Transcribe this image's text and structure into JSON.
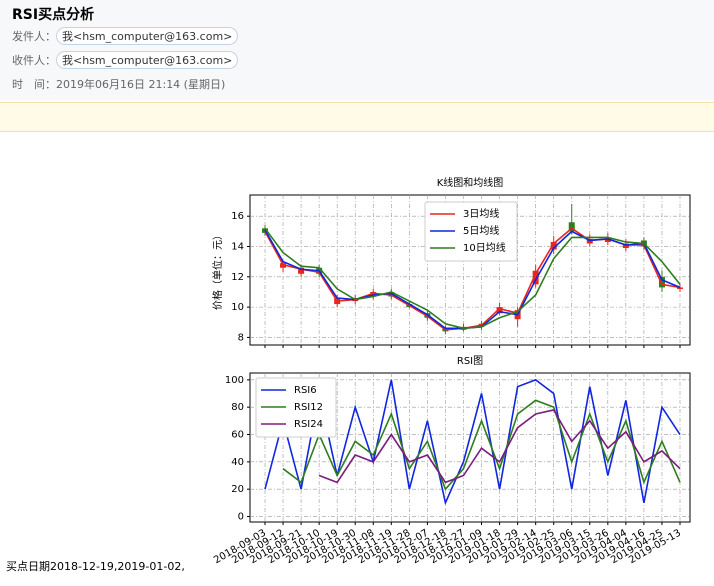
{
  "email": {
    "subject": "RSI买点分析",
    "from_label": "发件人：",
    "from": "我<hsm_computer@163.com>",
    "to_label": "收件人：",
    "to": "我<hsm_computer@163.com>",
    "time_label": "时　间：",
    "time": "2019年06月16日 21:14 (星期日)"
  },
  "body_text": "买点日期2018-12-19,2019-01-02,",
  "chart_data": [
    {
      "type": "candlestick",
      "title": "K线图和均线图",
      "y_label": "价格（单位：元）",
      "ylim": [
        7.5,
        17.4
      ],
      "yticks": [
        8,
        10,
        12,
        14,
        16
      ],
      "grid": true,
      "legend": "upper center",
      "open": [
        15.2,
        12.6,
        12.2,
        12.6,
        10.2,
        10.4,
        10.7,
        11.0,
        10.2,
        9.6,
        8.6,
        8.5,
        8.7,
        9.6,
        9.2,
        11.5,
        13.8,
        15.6,
        14.2,
        14.3,
        13.9,
        14.4,
        12.0,
        11.2
      ],
      "close": [
        14.9,
        12.9,
        12.6,
        12.2,
        10.6,
        10.6,
        11.0,
        10.7,
        10.0,
        9.3,
        8.4,
        8.7,
        8.9,
        10.0,
        9.8,
        12.4,
        14.3,
        15.0,
        14.5,
        14.6,
        14.2,
        14.0,
        11.3,
        11.3
      ],
      "high": [
        15.4,
        13.1,
        12.8,
        12.8,
        10.8,
        10.8,
        11.2,
        11.2,
        10.4,
        9.8,
        8.8,
        8.9,
        9.1,
        10.3,
        10.0,
        12.8,
        14.7,
        16.8,
        14.8,
        14.9,
        14.5,
        14.6,
        12.4,
        11.5
      ],
      "low": [
        14.7,
        12.3,
        12.0,
        12.0,
        10.0,
        10.2,
        10.5,
        10.5,
        9.9,
        9.1,
        8.2,
        8.4,
        8.5,
        9.5,
        8.7,
        11.3,
        13.5,
        14.8,
        14.0,
        14.1,
        13.7,
        13.8,
        11.0,
        11.0
      ],
      "series": [
        {
          "name": "3日均线",
          "color": "#e8261c",
          "values": [
            15.0,
            12.8,
            12.5,
            12.3,
            10.4,
            10.5,
            10.9,
            10.8,
            10.1,
            9.4,
            8.5,
            8.6,
            8.8,
            9.9,
            9.6,
            12.2,
            14.2,
            15.2,
            14.4,
            14.5,
            14.1,
            14.1,
            11.5,
            11.3
          ]
        },
        {
          "name": "5日均线",
          "color": "#1027e0",
          "values": [
            15.1,
            13.0,
            12.5,
            12.4,
            10.6,
            10.5,
            10.8,
            10.9,
            10.2,
            9.5,
            8.6,
            8.6,
            8.7,
            9.7,
            9.5,
            11.8,
            13.9,
            15.0,
            14.4,
            14.5,
            14.1,
            14.2,
            11.8,
            11.3
          ]
        },
        {
          "name": "10日均线",
          "color": "#2e7d1e",
          "values": [
            15.2,
            13.6,
            12.7,
            12.6,
            11.2,
            10.5,
            10.7,
            11.0,
            10.4,
            9.8,
            8.9,
            8.6,
            8.7,
            9.3,
            9.7,
            10.8,
            13.2,
            14.6,
            14.6,
            14.6,
            14.3,
            14.2,
            13.0,
            11.5
          ]
        }
      ]
    },
    {
      "type": "line",
      "title": "RSI图",
      "ylim": [
        -4,
        105
      ],
      "yticks": [
        0,
        20,
        40,
        60,
        80,
        100
      ],
      "grid": true,
      "legend": "upper left",
      "categories": [
        "2018-09-03",
        "2018-09-12",
        "2018-09-21",
        "2018-10-10",
        "2018-10-19",
        "2018-10-30",
        "2018-11-08",
        "2018-11-19",
        "2018-11-28",
        "2018-12-07",
        "2018-12-18",
        "2018-12-27",
        "2019-01-09",
        "2019-01-18",
        "2019-01-29",
        "2019-02-14",
        "2019-02-25",
        "2019-03-06",
        "2019-03-15",
        "2019-03-26",
        "2019-04-04",
        "2019-04-16",
        "2019-04-25",
        "2019-05-13"
      ],
      "series": [
        {
          "name": "RSI6",
          "color": "#1027e0",
          "values": [
            20,
            70,
            20,
            90,
            30,
            80,
            40,
            100,
            20,
            70,
            10,
            40,
            90,
            20,
            95,
            100,
            90,
            20,
            95,
            30,
            85,
            10,
            80,
            60
          ]
        },
        {
          "name": "RSI12",
          "color": "#2e7d1e",
          "values": [
            null,
            35,
            25,
            60,
            30,
            55,
            45,
            75,
            35,
            55,
            20,
            35,
            70,
            35,
            75,
            85,
            80,
            40,
            75,
            40,
            70,
            25,
            55,
            25
          ]
        },
        {
          "name": "RSI24",
          "color": "#7b1d7e",
          "values": [
            null,
            null,
            null,
            30,
            25,
            45,
            40,
            60,
            40,
            45,
            25,
            30,
            50,
            40,
            65,
            75,
            78,
            55,
            70,
            50,
            62,
            40,
            48,
            35
          ]
        }
      ]
    }
  ]
}
